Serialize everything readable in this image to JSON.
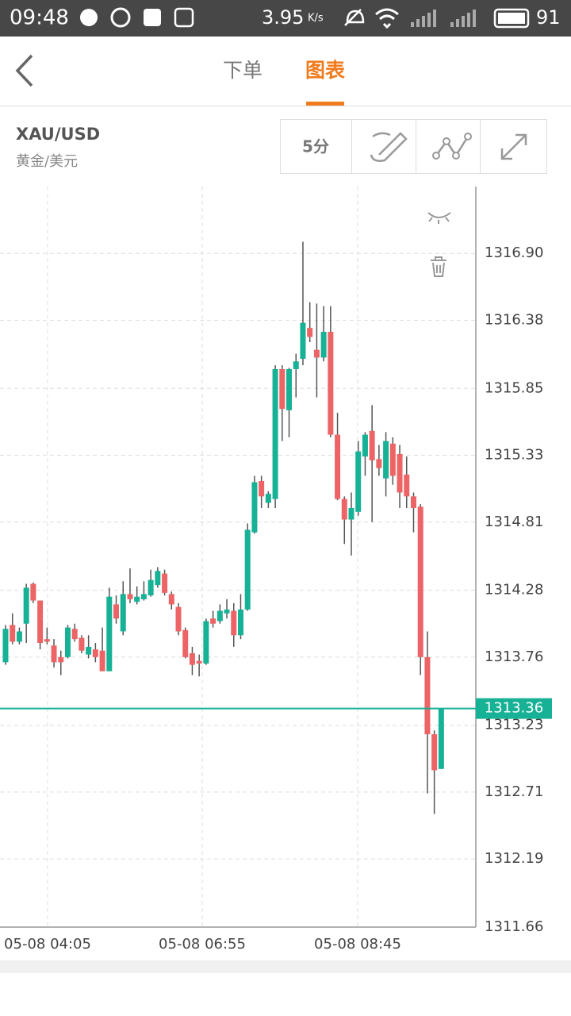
{
  "status_bar": {
    "time": "09:48",
    "speed": "3.95",
    "speed_unit": "K/s",
    "battery": "91"
  },
  "nav": {
    "tabs": [
      "下单",
      "图表"
    ],
    "active": 1
  },
  "header": {
    "symbol": "XAU/USD",
    "name": "黄金/美元",
    "interval": "5分"
  },
  "chart_data": {
    "type": "candlestick",
    "ylim": [
      1311.66,
      1317.42
    ],
    "yticks": [
      {
        "value": 1316.9,
        "label": "1316.90"
      },
      1316.38,
      1315.85,
      1315.33,
      1314.81,
      1314.28,
      1313.76,
      1313.23,
      1312.71,
      1312.19,
      1311.66
    ],
    "x_labels": [
      "05-08 04:05",
      "05-08 06:55",
      "05-08 08:45"
    ],
    "up_color": "#17b196",
    "down_color": "#ec6466",
    "grid": true,
    "current_price": 1313.36,
    "candles": [
      [
        1313.72,
        1314.01,
        1313.7,
        1313.98
      ],
      [
        1314.01,
        1314.1,
        1313.86,
        1313.88
      ],
      [
        1313.88,
        1313.99,
        1313.86,
        1313.96
      ],
      [
        1314.02,
        1314.33,
        1313.87,
        1314.3
      ],
      [
        1314.33,
        1314.34,
        1314.18,
        1314.2
      ],
      [
        1314.2,
        1314.2,
        1313.82,
        1313.87
      ],
      [
        1313.9,
        1313.99,
        1313.86,
        1313.88
      ],
      [
        1313.85,
        1313.9,
        1313.68,
        1313.72
      ],
      [
        1313.76,
        1313.81,
        1313.62,
        1313.72
      ],
      [
        1313.76,
        1314.01,
        1313.75,
        1313.99
      ],
      [
        1313.98,
        1314.02,
        1313.88,
        1313.9
      ],
      [
        1313.91,
        1313.93,
        1313.79,
        1313.81
      ],
      [
        1313.78,
        1313.93,
        1313.75,
        1313.84
      ],
      [
        1313.82,
        1313.87,
        1313.72,
        1313.76
      ],
      [
        1313.81,
        1313.99,
        1313.65,
        1313.65
      ],
      [
        1313.65,
        1314.3,
        1313.65,
        1314.23
      ],
      [
        1314.17,
        1314.24,
        1314.02,
        1314.06
      ],
      [
        1313.96,
        1314.35,
        1313.93,
        1314.25
      ],
      [
        1314.25,
        1314.45,
        1314.18,
        1314.21
      ],
      [
        1314.19,
        1314.31,
        1314.17,
        1314.23
      ],
      [
        1314.21,
        1314.35,
        1314.2,
        1314.25
      ],
      [
        1314.24,
        1314.44,
        1314.23,
        1314.36
      ],
      [
        1314.32,
        1314.46,
        1314.3,
        1314.43
      ],
      [
        1314.41,
        1314.44,
        1314.24,
        1314.26
      ],
      [
        1314.25,
        1314.27,
        1314.13,
        1314.17
      ],
      [
        1314.15,
        1314.18,
        1313.93,
        1313.96
      ],
      [
        1313.97,
        1313.99,
        1313.75,
        1313.76
      ],
      [
        1313.79,
        1313.84,
        1313.62,
        1313.7
      ],
      [
        1313.73,
        1313.78,
        1313.61,
        1313.71
      ],
      [
        1313.71,
        1314.06,
        1313.7,
        1314.04
      ],
      [
        1314.06,
        1314.12,
        1313.99,
        1314.02
      ],
      [
        1314.04,
        1314.17,
        1314.02,
        1314.12
      ],
      [
        1314.1,
        1314.21,
        1314.06,
        1314.13
      ],
      [
        1314.12,
        1314.18,
        1313.84,
        1313.93
      ],
      [
        1313.93,
        1314.25,
        1313.9,
        1314.13
      ],
      [
        1314.13,
        1314.8,
        1314.12,
        1314.75
      ],
      [
        1314.73,
        1315.17,
        1314.72,
        1315.12
      ],
      [
        1315.13,
        1315.17,
        1314.92,
        1315.01
      ],
      [
        1314.96,
        1315.05,
        1314.92,
        1315.03
      ],
      [
        1314.99,
        1316.03,
        1314.92,
        1316.0
      ],
      [
        1316.0,
        1316.03,
        1315.44,
        1315.69
      ],
      [
        1315.68,
        1316.01,
        1315.47,
        1316.0
      ],
      [
        1316.0,
        1316.12,
        1315.78,
        1316.06
      ],
      [
        1316.08,
        1316.99,
        1316.03,
        1316.36
      ],
      [
        1316.32,
        1316.52,
        1316.21,
        1316.25
      ],
      [
        1316.15,
        1316.51,
        1315.78,
        1316.09
      ],
      [
        1316.09,
        1316.49,
        1316.06,
        1316.29
      ],
      [
        1316.29,
        1316.49,
        1315.47,
        1315.49
      ],
      [
        1315.49,
        1315.66,
        1314.98,
        1314.99
      ],
      [
        1314.99,
        1315.01,
        1314.64,
        1314.83
      ],
      [
        1314.83,
        1315.04,
        1314.55,
        1314.92
      ],
      [
        1314.89,
        1315.44,
        1314.86,
        1315.36
      ],
      [
        1315.32,
        1315.51,
        1315.17,
        1315.49
      ],
      [
        1315.52,
        1315.72,
        1314.81,
        1315.29
      ],
      [
        1315.3,
        1315.41,
        1315.17,
        1315.23
      ],
      [
        1315.15,
        1315.51,
        1315.01,
        1315.44
      ],
      [
        1315.42,
        1315.47,
        1315.1,
        1315.17
      ],
      [
        1315.34,
        1315.41,
        1314.92,
        1315.04
      ],
      [
        1315.18,
        1315.32,
        1314.92,
        1315.01
      ],
      [
        1315.01,
        1315.04,
        1314.73,
        1314.92
      ],
      [
        1314.93,
        1314.95,
        1313.62,
        1313.76
      ],
      [
        1313.76,
        1313.96,
        1312.7,
        1313.16
      ],
      [
        1313.16,
        1313.19,
        1312.54,
        1312.88
      ],
      [
        1312.89,
        1313.36,
        1312.89,
        1313.36
      ]
    ]
  }
}
